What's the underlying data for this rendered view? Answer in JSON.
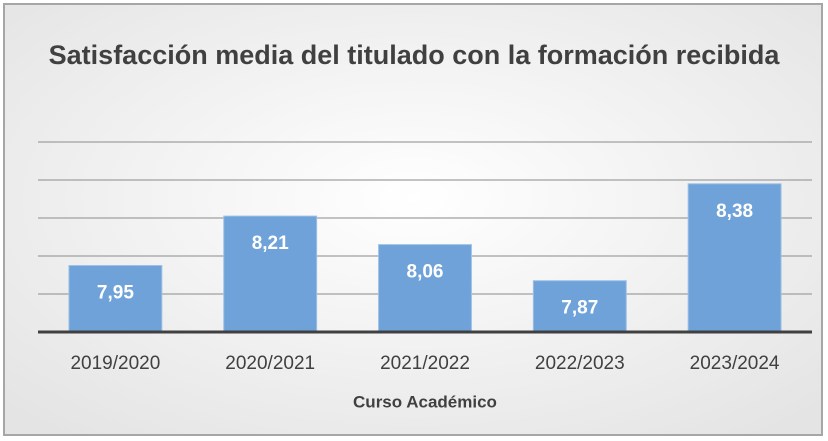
{
  "chart_data": {
    "type": "bar",
    "title": "Satisfacción media del titulado con la formación recibida",
    "x_label": "Curso Académico",
    "categories": [
      "2019/2020",
      "2020/2021",
      "2021/2022",
      "2022/2023",
      "2023/2024"
    ],
    "values": [
      7.95,
      8.21,
      8.06,
      7.87,
      8.38
    ],
    "value_labels": [
      "7,95",
      "8,21",
      "8,06",
      "7,87",
      "8,38"
    ],
    "color": "#6fa2d8",
    "ylim": [
      7.6,
      8.6
    ],
    "yticks": [
      7.6,
      7.8,
      8.0,
      8.2,
      8.4,
      8.6
    ],
    "grid": true
  }
}
